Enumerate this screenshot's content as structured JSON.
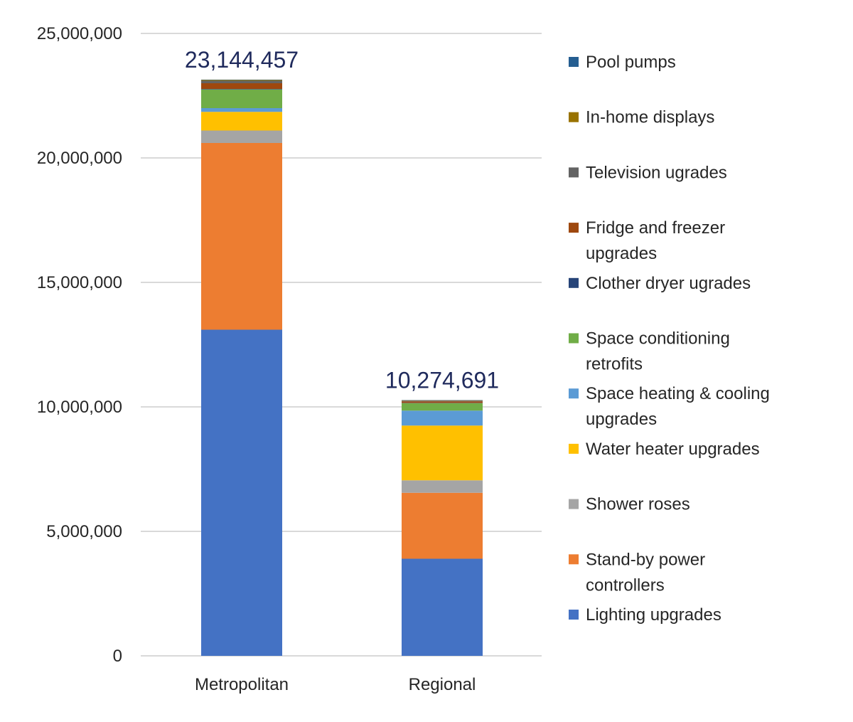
{
  "chart_data": {
    "type": "bar",
    "stacked": true,
    "title": "",
    "xlabel": "",
    "ylabel": "",
    "ylim": [
      0,
      25000000
    ],
    "yticks": [
      0,
      5000000,
      10000000,
      15000000,
      20000000,
      25000000
    ],
    "ytick_labels": [
      "0",
      "5,000,000",
      "10,000,000",
      "15,000,000",
      "20,000,000",
      "25,000,000"
    ],
    "categories": [
      "Metropolitan",
      "Regional"
    ],
    "totals": [
      23144457,
      10274691
    ],
    "total_labels": [
      "23,144,457",
      "10,274,691"
    ],
    "grid": true,
    "legend_position": "right",
    "series": [
      {
        "name": "Lighting upgrades",
        "color": "#4472C4",
        "values": [
          13100000,
          3900000
        ]
      },
      {
        "name": "Stand-by power controllers",
        "color": "#ED7D31",
        "values": [
          7500000,
          2650000
        ]
      },
      {
        "name": "Shower roses",
        "color": "#A5A5A5",
        "values": [
          500000,
          500000
        ]
      },
      {
        "name": "Water heater upgrades",
        "color": "#FFC000",
        "values": [
          750000,
          2200000
        ]
      },
      {
        "name": "Space heating & cooling upgrades",
        "color": "#5B9BD5",
        "values": [
          150000,
          600000
        ]
      },
      {
        "name": "Space conditioning retrofits",
        "color": "#70AD47",
        "values": [
          750000,
          300000
        ]
      },
      {
        "name": "Clother dryer ugrades",
        "color": "#264478",
        "values": [
          20000,
          10000
        ]
      },
      {
        "name": "Fridge and freezer upgrades",
        "color": "#9E480E",
        "values": [
          230000,
          60000
        ]
      },
      {
        "name": "Television ugrades",
        "color": "#636363",
        "values": [
          100000,
          30000
        ]
      },
      {
        "name": "In-home displays",
        "color": "#997300",
        "values": [
          30000,
          15000
        ]
      },
      {
        "name": "Pool pumps",
        "color": "#255E91",
        "values": [
          14457,
          9691
        ]
      }
    ]
  }
}
